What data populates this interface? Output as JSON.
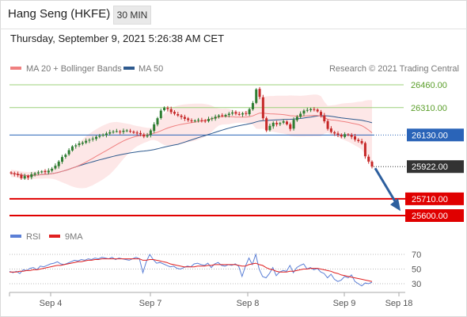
{
  "header": {
    "title": "Hang Seng (HKFE)",
    "interval": "30 MIN"
  },
  "timestamp": "Thursday, September 9, 2021 5:26:38 AM CET",
  "legend": {
    "ma20": {
      "label": "MA 20 + Bollinger Bands",
      "color": "#f08080"
    },
    "ma50": {
      "label": "MA 50",
      "color": "#2e5a8e"
    },
    "credit": "Research © 2021 Trading Central"
  },
  "rsi_legend": {
    "rsi": {
      "label": "RSI",
      "color": "#5b7fd6"
    },
    "ma": {
      "label": "9MA",
      "color": "#e02020"
    }
  },
  "x_labels": [
    "Sep 4",
    "Sep 7",
    "Sep 8",
    "Sep 9",
    "Sep 18"
  ],
  "colors": {
    "up": "#2e7d32",
    "down": "#c62828",
    "resistance": "#9cd07a",
    "pivot": "#2a64b8",
    "support": "#e00000",
    "last": "#333333",
    "arrow": "#2d5f9e"
  },
  "chart_data": {
    "type": "candlestick",
    "instrument": "Hang Seng (HKFE)",
    "interval": "30 MIN",
    "price_levels": [
      {
        "label": "26460.00",
        "value": 26460,
        "kind": "resistance"
      },
      {
        "label": "26310.00",
        "value": 26310,
        "kind": "resistance"
      },
      {
        "label": "26130.00",
        "value": 26130,
        "kind": "pivot"
      },
      {
        "label": "25922.00",
        "value": 25922,
        "kind": "last"
      },
      {
        "label": "25710.00",
        "value": 25710,
        "kind": "support"
      },
      {
        "label": "25600.00",
        "value": 25600,
        "kind": "support"
      }
    ],
    "close_series": [
      25878,
      25872,
      25866,
      25846,
      25860,
      25850,
      25872,
      25878,
      25884,
      25890,
      25886,
      25895,
      25908,
      25928,
      25955,
      25985,
      26000,
      26030,
      26055,
      26062,
      26075,
      26080,
      26092,
      26098,
      26106,
      26118,
      26124,
      26132,
      26140,
      26148,
      26152,
      26155,
      26150,
      26158,
      26160,
      26153,
      26145,
      26140,
      26135,
      26120,
      26128,
      26160,
      26200,
      26240,
      26290,
      26310,
      26300,
      26280,
      26270,
      26258,
      26248,
      26236,
      26228,
      26220,
      26225,
      26230,
      26225,
      26220,
      26235,
      26240,
      26250,
      26258,
      26256,
      26262,
      26270,
      26278,
      26270,
      26265,
      26272,
      26270,
      26300,
      26340,
      26430,
      26380,
      26240,
      26160,
      26190,
      26210,
      26200,
      26208,
      26220,
      26200,
      26170,
      26230,
      26250,
      26270,
      26290,
      26295,
      26300,
      26295,
      26285,
      26260,
      26220,
      26170,
      26150,
      26140,
      26130,
      26120,
      26135,
      26130,
      26118,
      26100,
      26090,
      26075,
      25990,
      25955,
      25922
    ],
    "rsi": {
      "ticks": [
        70,
        50,
        30
      ],
      "ylim": [
        20,
        80
      ],
      "rsi_values": [
        47,
        45,
        47,
        44,
        49,
        48,
        51,
        52,
        49,
        54,
        53,
        55,
        57,
        58,
        60,
        57,
        56,
        58,
        60,
        62,
        61,
        63,
        62,
        64,
        63,
        65,
        64,
        66,
        65,
        64,
        66,
        63,
        65,
        64,
        63,
        62,
        64,
        66,
        64,
        45,
        60,
        70,
        63,
        58,
        59,
        57,
        55,
        53,
        54,
        51,
        50,
        52,
        54,
        53,
        57,
        58,
        56,
        55,
        58,
        52,
        57,
        59,
        55,
        54,
        56,
        55,
        57,
        54,
        40,
        54,
        65,
        56,
        70,
        50,
        40,
        38,
        44,
        52,
        41,
        46,
        48,
        47,
        55,
        45,
        52,
        55,
        57,
        50,
        52,
        49,
        51,
        46,
        44,
        38,
        43,
        36,
        33,
        35,
        40,
        38,
        42,
        33,
        30,
        27,
        31,
        30,
        32
      ],
      "ma_values": [
        46,
        46,
        46,
        47,
        47,
        48,
        48,
        49,
        49,
        50,
        51,
        52,
        53,
        54,
        55,
        55,
        56,
        57,
        58,
        59,
        60,
        60,
        61,
        62,
        62,
        63,
        63,
        64,
        64,
        64,
        64,
        64,
        64,
        64,
        64,
        64,
        64,
        64,
        64,
        62,
        62,
        63,
        63,
        62,
        61,
        60,
        59,
        57,
        56,
        55,
        54,
        53,
        53,
        53,
        53,
        54,
        54,
        54,
        55,
        55,
        56,
        56,
        56,
        56,
        56,
        56,
        56,
        55,
        54,
        54,
        56,
        57,
        58,
        56,
        55,
        52,
        50,
        49,
        47,
        46,
        46,
        46,
        47,
        47,
        48,
        49,
        50,
        50,
        51,
        51,
        51,
        50,
        49,
        48,
        47,
        45,
        44,
        42,
        41,
        40,
        39,
        38,
        37,
        36,
        35,
        34,
        33
      ]
    }
  }
}
